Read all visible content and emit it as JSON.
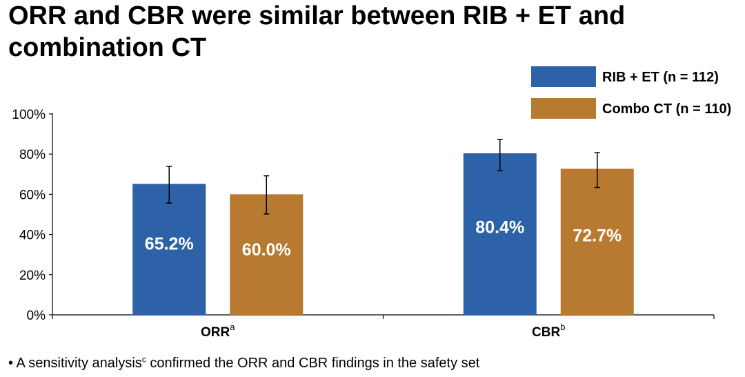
{
  "title": {
    "line1": "ORR and CBR were similar between RIB + ET and",
    "line2": "combination CT"
  },
  "chart_data": {
    "type": "bar",
    "title": "ORR and CBR were similar between RIB + ET and combination CT",
    "categories": [
      {
        "label": "ORR",
        "sup": "a"
      },
      {
        "label": "CBR",
        "sup": "b"
      }
    ],
    "series": [
      {
        "name": "RIB + ET (n = 112)",
        "color": "#2e62a8",
        "values": [
          65.2,
          80.4
        ],
        "value_labels": [
          "65.2%",
          "80.4%"
        ],
        "error_low": [
          55.6,
          71.7
        ],
        "error_high": [
          73.9,
          87.3
        ]
      },
      {
        "name": "Combo CT (n = 110)",
        "color": "#b87a30",
        "values": [
          60.0,
          72.7
        ],
        "value_labels": [
          "60.0%",
          "72.7%"
        ],
        "error_low": [
          50.2,
          63.4
        ],
        "error_high": [
          69.2,
          80.7
        ]
      }
    ],
    "yticks": [
      "0%",
      "20%",
      "40%",
      "60%",
      "80%",
      "100%"
    ],
    "ylim": [
      0,
      100
    ],
    "xlabel": "",
    "ylabel": "",
    "legend": "top-right",
    "grid": false
  },
  "footnote": {
    "bullet": "•",
    "text_before": "A sensitivity analysis",
    "sup": "c",
    "text_after": " confirmed the ORR and CBR findings in the safety set"
  }
}
